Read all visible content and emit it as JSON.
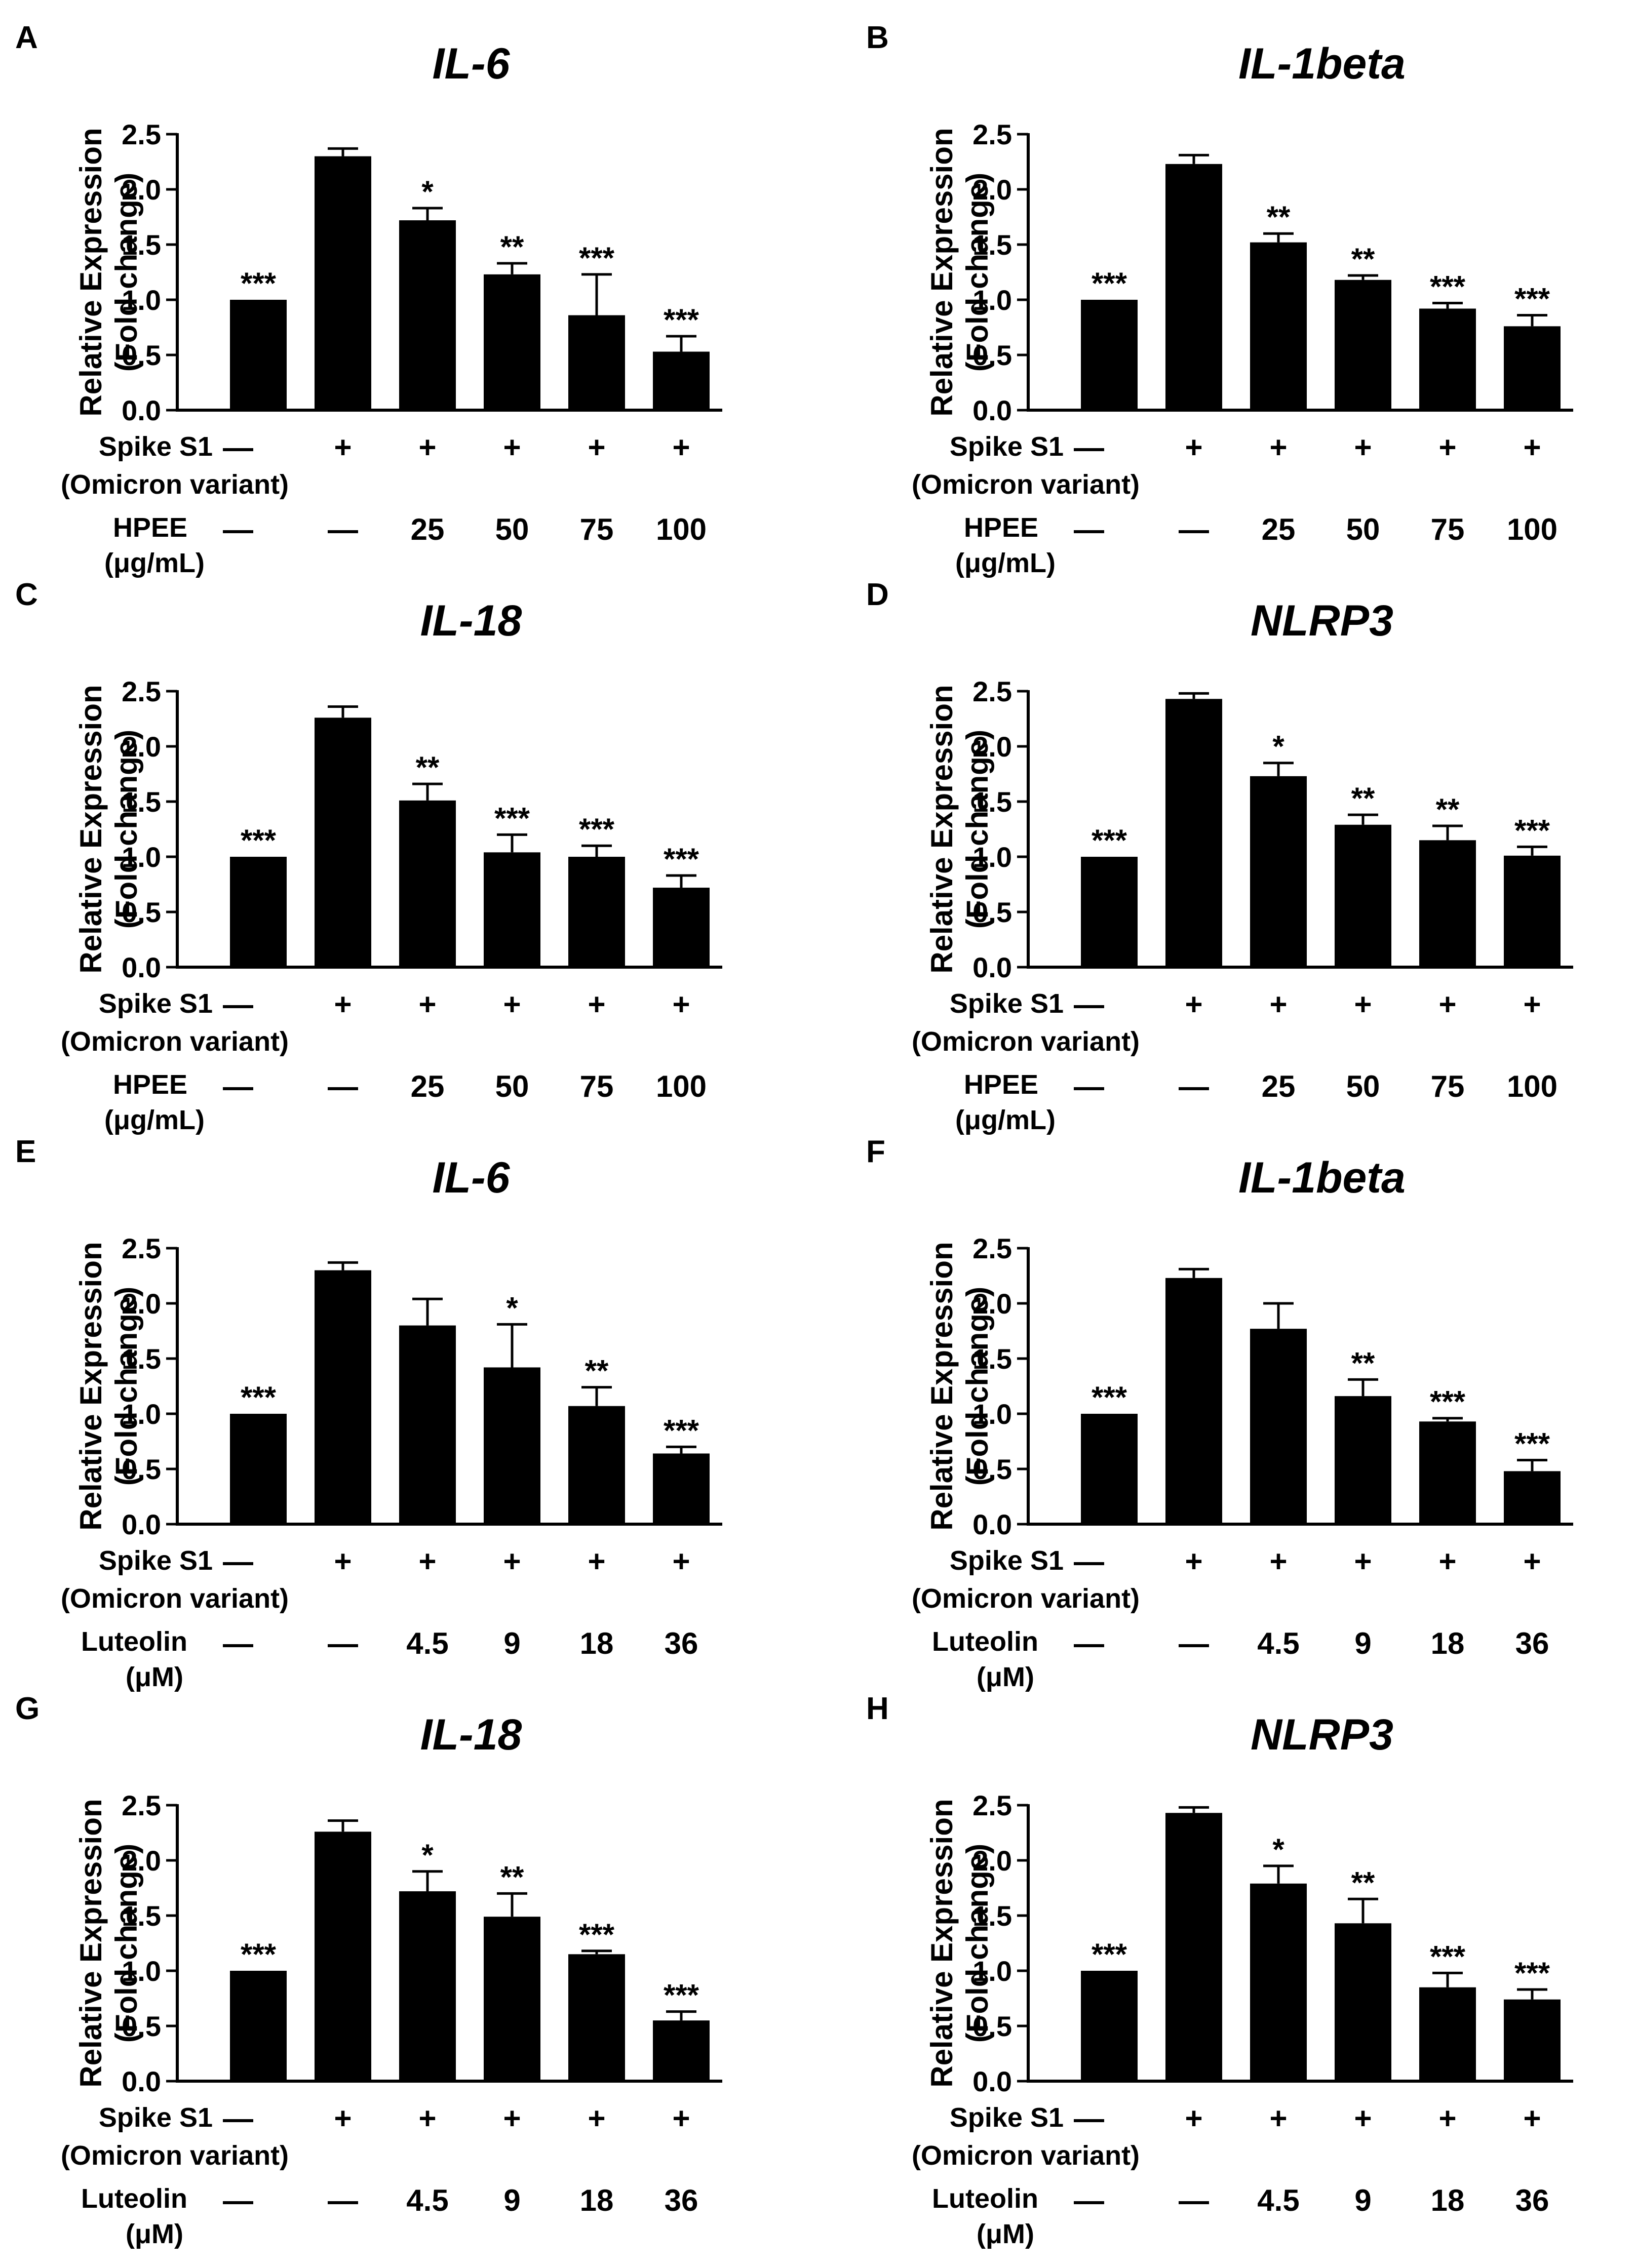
{
  "figure": {
    "ylabel_line1": "Relative Expression",
    "ylabel_line2": "(Fold change)",
    "yticks": [
      "0.0",
      "0.5",
      "1.0",
      "1.5",
      "2.0",
      "2.5"
    ],
    "spike_label_line1": "Spike S1",
    "spike_label_line2": "(Omicron variant)",
    "spike_values": [
      "—",
      "+",
      "+",
      "+",
      "+",
      "+"
    ]
  },
  "colors": {
    "bar": "#000000",
    "axis": "#000000",
    "background": "#ffffff"
  },
  "chart_data": [
    {
      "panel": "A",
      "type": "bar",
      "title": "IL-6",
      "ylabel": "Relative Expression (Fold change)",
      "ylim": [
        0,
        2.5
      ],
      "values": [
        1.0,
        2.3,
        1.72,
        1.23,
        0.86,
        0.53
      ],
      "errors": [
        0,
        0.07,
        0.11,
        0.1,
        0.37,
        0.14
      ],
      "significance": [
        "***",
        "",
        "*",
        "**",
        "***",
        "***"
      ],
      "treatment_label_line1": "HPEE",
      "treatment_label_line2": "(μg/mL)",
      "treatment_values": [
        "—",
        "—",
        "25",
        "50",
        "75",
        "100"
      ]
    },
    {
      "panel": "B",
      "type": "bar",
      "title": "IL-1beta",
      "ylabel": "Relative Expression (Fold change)",
      "ylim": [
        0,
        2.5
      ],
      "values": [
        1.0,
        2.23,
        1.52,
        1.18,
        0.92,
        0.76
      ],
      "errors": [
        0,
        0.08,
        0.08,
        0.04,
        0.05,
        0.1
      ],
      "significance": [
        "***",
        "",
        "**",
        "**",
        "***",
        "***"
      ],
      "treatment_label_line1": "HPEE",
      "treatment_label_line2": "(μg/mL)",
      "treatment_values": [
        "—",
        "—",
        "25",
        "50",
        "75",
        "100"
      ]
    },
    {
      "panel": "C",
      "type": "bar",
      "title": "IL-18",
      "ylabel": "Relative Expression (Fold change)",
      "ylim": [
        0,
        2.5
      ],
      "values": [
        1.0,
        2.26,
        1.51,
        1.04,
        1.0,
        0.72
      ],
      "errors": [
        0,
        0.1,
        0.15,
        0.16,
        0.1,
        0.11
      ],
      "significance": [
        "***",
        "",
        "**",
        "***",
        "***",
        "***"
      ],
      "treatment_label_line1": "HPEE",
      "treatment_label_line2": "(μg/mL)",
      "treatment_values": [
        "—",
        "—",
        "25",
        "50",
        "75",
        "100"
      ]
    },
    {
      "panel": "D",
      "type": "bar",
      "title": "NLRP3",
      "ylabel": "Relative Expression (Fold change)",
      "ylim": [
        0,
        2.5
      ],
      "values": [
        1.0,
        2.43,
        1.73,
        1.29,
        1.15,
        1.01
      ],
      "errors": [
        0,
        0.05,
        0.12,
        0.09,
        0.13,
        0.08
      ],
      "significance": [
        "***",
        "",
        "*",
        "**",
        "**",
        "***"
      ],
      "treatment_label_line1": "HPEE",
      "treatment_label_line2": "(μg/mL)",
      "treatment_values": [
        "—",
        "—",
        "25",
        "50",
        "75",
        "100"
      ]
    },
    {
      "panel": "E",
      "type": "bar",
      "title": "IL-6",
      "ylabel": "Relative Expression (Fold change)",
      "ylim": [
        0,
        2.5
      ],
      "values": [
        1.0,
        2.3,
        1.8,
        1.42,
        1.07,
        0.64
      ],
      "errors": [
        0,
        0.07,
        0.24,
        0.39,
        0.17,
        0.06
      ],
      "significance": [
        "***",
        "",
        "",
        "*",
        "**",
        "***"
      ],
      "treatment_label_line1": "Luteolin",
      "treatment_label_line2": "(μM)",
      "treatment_values": [
        "—",
        "—",
        "4.5",
        "9",
        "18",
        "36"
      ]
    },
    {
      "panel": "F",
      "type": "bar",
      "title": "IL-1beta",
      "ylabel": "Relative Expression (Fold change)",
      "ylim": [
        0,
        2.5
      ],
      "values": [
        1.0,
        2.23,
        1.77,
        1.16,
        0.93,
        0.48
      ],
      "errors": [
        0,
        0.08,
        0.23,
        0.15,
        0.03,
        0.1
      ],
      "significance": [
        "***",
        "",
        "",
        "**",
        "***",
        "***"
      ],
      "treatment_label_line1": "Luteolin",
      "treatment_label_line2": "(μM)",
      "treatment_values": [
        "—",
        "—",
        "4.5",
        "9",
        "18",
        "36"
      ]
    },
    {
      "panel": "G",
      "type": "bar",
      "title": "IL-18",
      "ylabel": "Relative Expression (Fold change)",
      "ylim": [
        0,
        2.5
      ],
      "values": [
        1.0,
        2.26,
        1.72,
        1.49,
        1.15,
        0.55
      ],
      "errors": [
        0,
        0.1,
        0.18,
        0.21,
        0.03,
        0.08
      ],
      "significance": [
        "***",
        "",
        "*",
        "**",
        "***",
        "***"
      ],
      "treatment_label_line1": "Luteolin",
      "treatment_label_line2": "(μM)",
      "treatment_values": [
        "—",
        "—",
        "4.5",
        "9",
        "18",
        "36"
      ]
    },
    {
      "panel": "H",
      "type": "bar",
      "title": "NLRP3",
      "ylabel": "Relative Expression (Fold change)",
      "ylim": [
        0,
        2.5
      ],
      "values": [
        1.0,
        2.43,
        1.79,
        1.43,
        0.85,
        0.74
      ],
      "errors": [
        0,
        0.05,
        0.16,
        0.22,
        0.13,
        0.09
      ],
      "significance": [
        "***",
        "",
        "*",
        "**",
        "***",
        "***"
      ],
      "treatment_label_line1": "Luteolin",
      "treatment_label_line2": "(μM)",
      "treatment_values": [
        "—",
        "—",
        "4.5",
        "9",
        "18",
        "36"
      ]
    }
  ]
}
